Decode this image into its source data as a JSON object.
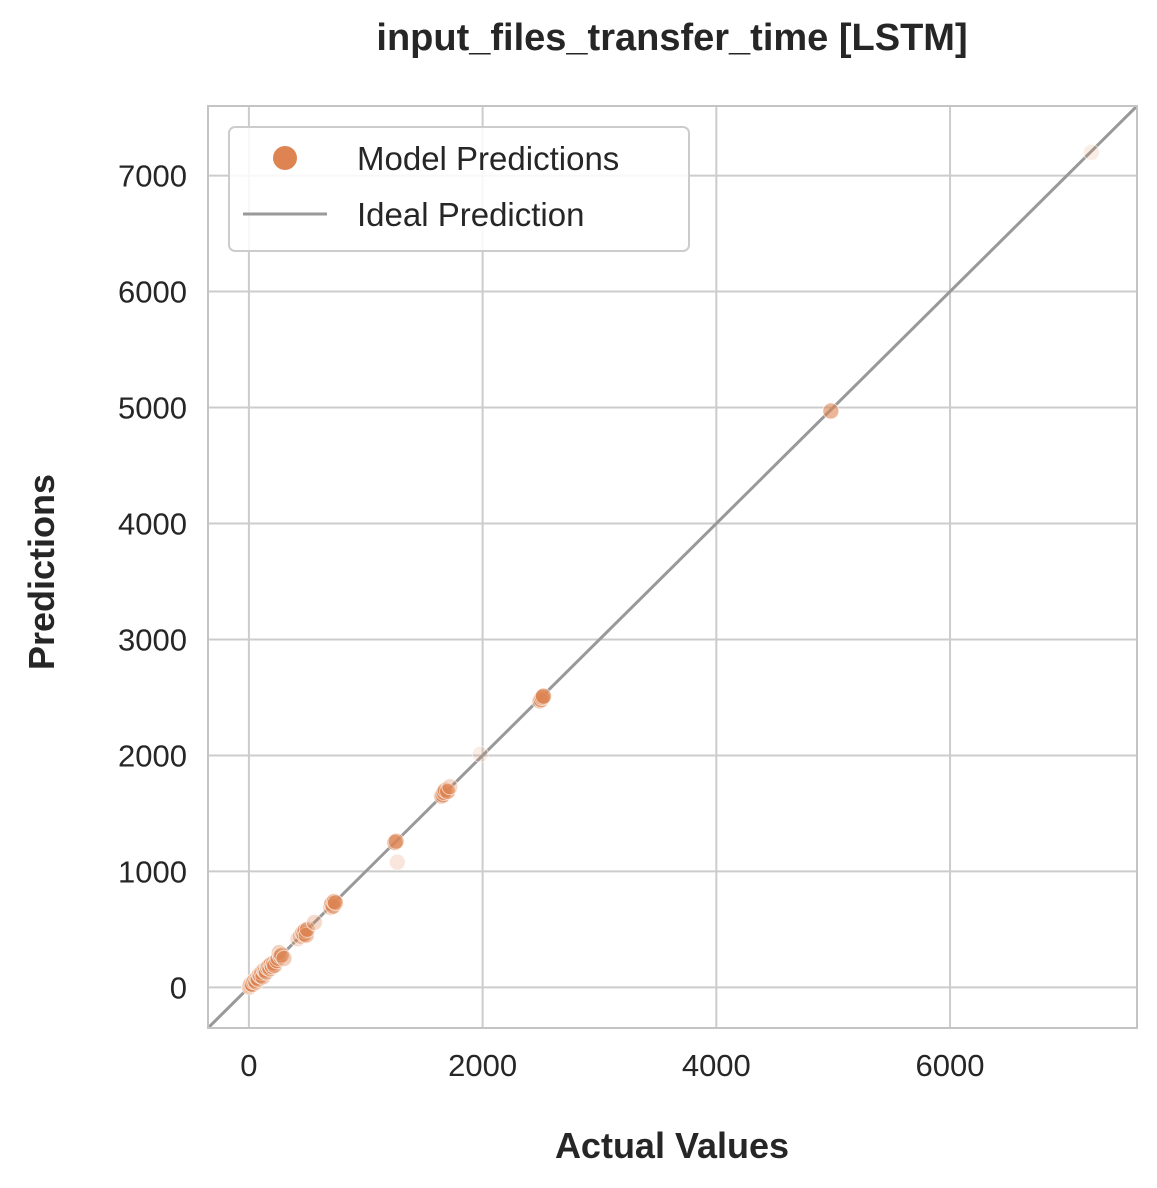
{
  "chart_data": {
    "type": "scatter",
    "title": "input_files_transfer_time [LSTM]",
    "xlabel": "Actual Values",
    "ylabel": "Predictions",
    "xlim": [
      -350,
      7600
    ],
    "ylim": [
      -350,
      7600
    ],
    "xticks": [
      0,
      2000,
      4000,
      6000
    ],
    "xtick_labels": [
      "0",
      "2000",
      "4000",
      "6000"
    ],
    "yticks": [
      0,
      1000,
      2000,
      3000,
      4000,
      5000,
      6000,
      7000
    ],
    "ytick_labels": [
      "0",
      "1000",
      "2000",
      "3000",
      "4000",
      "5000",
      "6000",
      "7000"
    ],
    "grid": true,
    "legend": {
      "position": "top-left",
      "entries": [
        "Model Predictions",
        "Ideal Prediction"
      ]
    },
    "colors": {
      "points": "#dd8452",
      "ideal_line": "#999999",
      "grid": "#cccccc",
      "axes": "#c4c4c4"
    },
    "series": [
      {
        "name": "Model Predictions",
        "kind": "scatter",
        "x": [
          5,
          10,
          15,
          20,
          30,
          40,
          50,
          60,
          70,
          80,
          90,
          100,
          110,
          120,
          130,
          140,
          150,
          160,
          170,
          180,
          190,
          200,
          210,
          220,
          240,
          250,
          260,
          270,
          280,
          300,
          420,
          440,
          460,
          470,
          480,
          490,
          500,
          560,
          700,
          710,
          720,
          730,
          740,
          1250,
          1260,
          1270,
          1650,
          1660,
          1670,
          1680,
          1700,
          1720,
          1980,
          2490,
          2500,
          2510,
          2520,
          4980,
          7210
        ],
        "y": [
          5,
          12,
          20,
          30,
          25,
          50,
          60,
          45,
          80,
          70,
          110,
          100,
          130,
          90,
          150,
          140,
          130,
          170,
          180,
          160,
          200,
          180,
          210,
          190,
          230,
          250,
          300,
          270,
          280,
          250,
          420,
          440,
          470,
          460,
          490,
          450,
          500,
          560,
          690,
          720,
          700,
          740,
          730,
          1250,
          1260,
          1080,
          1650,
          1660,
          1680,
          1700,
          1690,
          1730,
          2010,
          2470,
          2480,
          2500,
          2510,
          4970,
          7200
        ],
        "alpha": [
          0.9,
          0.9,
          0.9,
          0.7,
          0.5,
          0.6,
          0.6,
          0.4,
          0.5,
          0.4,
          0.5,
          0.6,
          0.4,
          0.4,
          0.5,
          0.4,
          0.4,
          0.5,
          0.6,
          0.5,
          0.6,
          0.5,
          0.4,
          0.5,
          0.4,
          0.5,
          0.4,
          0.4,
          0.5,
          0.4,
          0.3,
          0.4,
          0.6,
          0.7,
          0.6,
          0.5,
          0.4,
          0.3,
          0.4,
          0.7,
          0.6,
          0.7,
          0.5,
          0.7,
          0.5,
          0.2,
          0.6,
          0.7,
          0.6,
          0.5,
          0.6,
          0.3,
          0.15,
          0.5,
          0.6,
          0.7,
          0.7,
          0.6,
          0.15
        ]
      },
      {
        "name": "Ideal Prediction",
        "kind": "line",
        "x": [
          -350,
          7600
        ],
        "y": [
          -350,
          7600
        ]
      }
    ]
  }
}
